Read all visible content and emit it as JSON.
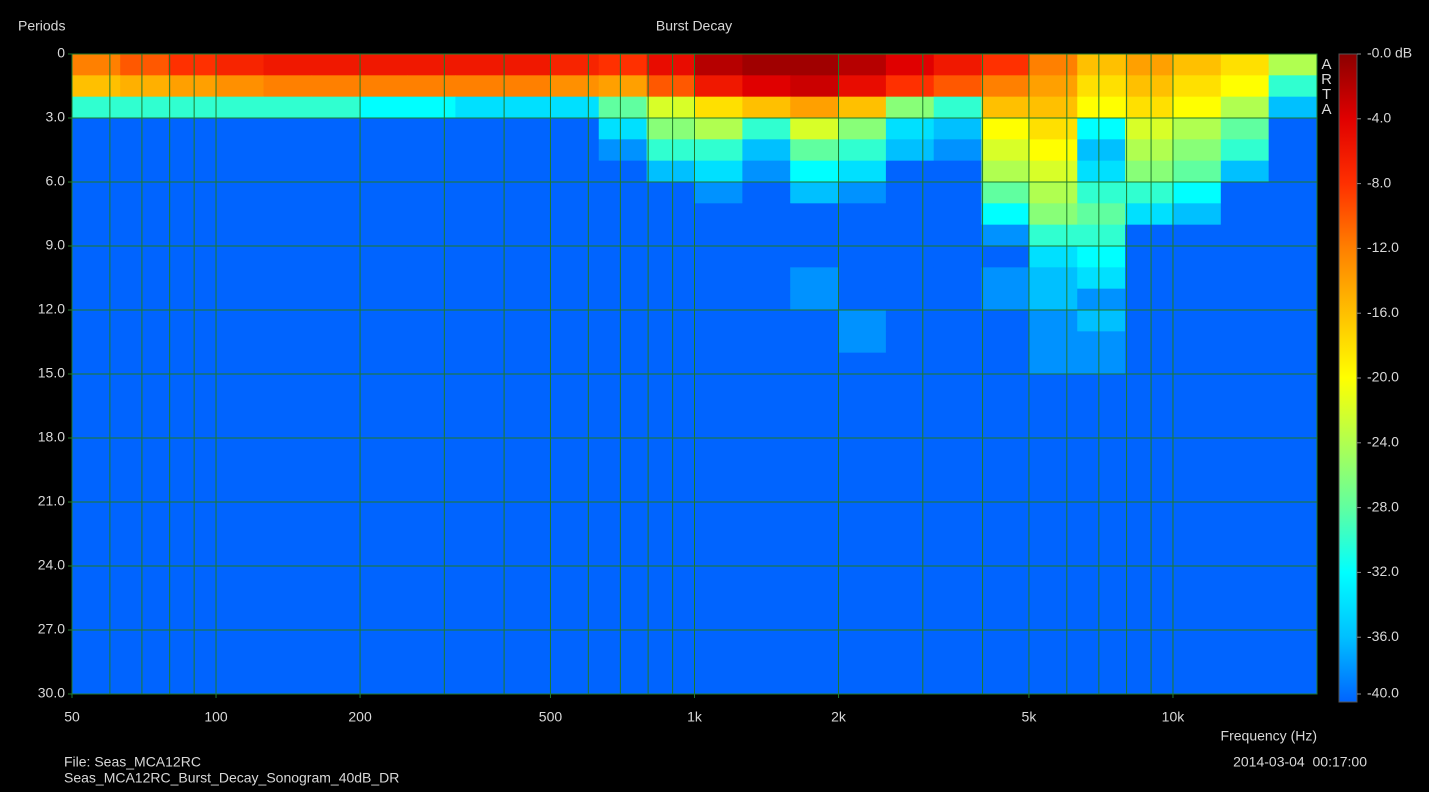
{
  "chart_data": {
    "type": "heatmap",
    "title": "Burst Decay",
    "ylabel": "Periods",
    "xlabel": "Frequency (Hz)",
    "watermark": "ARTA",
    "file_label": "File: Seas_MCA12RC",
    "file_name": "Seas_MCA12RC_Burst_Decay_Sonogram_40dB_DR",
    "timestamp": "2014-03-04  00:17:00",
    "xscale": "log",
    "xlim": [
      50,
      20000
    ],
    "xticks": [
      50,
      100,
      200,
      500,
      {
        "value": 1000,
        "label": "1k"
      },
      {
        "value": 2000,
        "label": "2k"
      },
      {
        "value": 5000,
        "label": "5k"
      },
      {
        "value": 10000,
        "label": "10k"
      }
    ],
    "xminor": [
      60,
      70,
      80,
      90,
      300,
      400,
      600,
      700,
      800,
      900,
      3000,
      4000,
      6000,
      7000,
      8000,
      9000
    ],
    "ylim": [
      0,
      30
    ],
    "yticks": [
      0,
      {
        "value": 3,
        "label": "3.0"
      },
      {
        "value": 6,
        "label": "6.0"
      },
      {
        "value": 9,
        "label": "9.0"
      },
      {
        "value": 12,
        "label": "12.0"
      },
      {
        "value": 15,
        "label": "15.0"
      },
      {
        "value": 18,
        "label": "18.0"
      },
      {
        "value": 21,
        "label": "21.0"
      },
      {
        "value": 24,
        "label": "24.0"
      },
      {
        "value": 27,
        "label": "27.0"
      },
      {
        "value": 30,
        "label": "30.0"
      }
    ],
    "zlim": [
      -40,
      0
    ],
    "zticks": [
      {
        "value": 0,
        "label": "-0.0 dB"
      },
      {
        "value": -4,
        "label": "-4.0"
      },
      {
        "value": -8,
        "label": "-8.0"
      },
      {
        "value": -12,
        "label": "-12.0"
      },
      {
        "value": -16,
        "label": "-16.0"
      },
      {
        "value": -20,
        "label": "-20.0"
      },
      {
        "value": -24,
        "label": "-24.0"
      },
      {
        "value": -28,
        "label": "-28.0"
      },
      {
        "value": -32,
        "label": "-32.0"
      },
      {
        "value": -36,
        "label": "-36.0"
      },
      {
        "value": -40,
        "label": "-40.0"
      }
    ],
    "colormap": [
      "#0064ff",
      "#00c0ff",
      "#00ffff",
      "#60ffa0",
      "#b0ff50",
      "#ffff00",
      "#ffc000",
      "#ff8000",
      "#ff3000",
      "#e00000",
      "#8b0000"
    ],
    "plot_background": "#0064ff",
    "grid_color": "#1f7a2a",
    "x": [
      56,
      71,
      89,
      112,
      141,
      178,
      224,
      282,
      355,
      447,
      562,
      708,
      891,
      1122,
      1413,
      1778,
      2239,
      2818,
      3548,
      4467,
      5623,
      7079,
      8913,
      11220,
      14125,
      17783
    ],
    "y": [
      0.5,
      1.5,
      2.5,
      3.5,
      4.5,
      5.5,
      6.5,
      7.5,
      8.5,
      9.5,
      10.5,
      11.5,
      12.5,
      13.5,
      14.5
    ],
    "z": [
      [
        -12,
        -10,
        -8,
        -7,
        -6,
        -6,
        -6,
        -6,
        -6,
        -6,
        -7,
        -8,
        -5,
        -2,
        -1,
        -1,
        -2,
        -4,
        -6,
        -8,
        -12,
        -16,
        -14,
        -16,
        -18,
        -24
      ],
      [
        -16,
        -15,
        -14,
        -13,
        -12,
        -12,
        -12,
        -12,
        -12,
        -12,
        -13,
        -14,
        -10,
        -6,
        -4,
        -3,
        -5,
        -8,
        -10,
        -12,
        -14,
        -18,
        -16,
        -18,
        -20,
        -30
      ],
      [
        -30,
        -30,
        -30,
        -30,
        -30,
        -30,
        -32,
        -32,
        -34,
        -34,
        -34,
        -28,
        -22,
        -18,
        -16,
        -14,
        -16,
        -26,
        -30,
        -16,
        -16,
        -20,
        -18,
        -20,
        -24,
        -36
      ],
      [
        -40,
        -40,
        -40,
        -40,
        -40,
        -40,
        -40,
        -40,
        -40,
        -40,
        -40,
        -34,
        -26,
        -24,
        -30,
        -22,
        -26,
        -34,
        -36,
        -20,
        -18,
        -32,
        -22,
        -24,
        -28,
        -40
      ],
      [
        -40,
        -40,
        -40,
        -40,
        -40,
        -40,
        -40,
        -40,
        -40,
        -40,
        -40,
        -38,
        -30,
        -30,
        -36,
        -28,
        -30,
        -36,
        -38,
        -22,
        -20,
        -36,
        -24,
        -26,
        -30,
        -40
      ],
      [
        -40,
        -40,
        -40,
        -40,
        -40,
        -40,
        -40,
        -40,
        -40,
        -40,
        -40,
        -40,
        -36,
        -34,
        -38,
        -32,
        -34,
        -40,
        -40,
        -24,
        -22,
        -34,
        -26,
        -28,
        -36,
        -40
      ],
      [
        -40,
        -40,
        -40,
        -40,
        -40,
        -40,
        -40,
        -40,
        -40,
        -40,
        -40,
        -40,
        -40,
        -38,
        -40,
        -36,
        -38,
        -40,
        -40,
        -28,
        -24,
        -30,
        -30,
        -32,
        -40,
        -40
      ],
      [
        -40,
        -40,
        -40,
        -40,
        -40,
        -40,
        -40,
        -40,
        -40,
        -40,
        -40,
        -40,
        -40,
        -40,
        -40,
        -40,
        -40,
        -40,
        -40,
        -32,
        -26,
        -28,
        -34,
        -36,
        -40,
        -40
      ],
      [
        -40,
        -40,
        -40,
        -40,
        -40,
        -40,
        -40,
        -40,
        -40,
        -40,
        -40,
        -40,
        -40,
        -40,
        -40,
        -40,
        -40,
        -40,
        -40,
        -38,
        -30,
        -30,
        -40,
        -40,
        -40,
        -40
      ],
      [
        -40,
        -40,
        -40,
        -40,
        -40,
        -40,
        -40,
        -40,
        -40,
        -40,
        -40,
        -40,
        -40,
        -40,
        -40,
        -40,
        -40,
        -40,
        -40,
        -40,
        -34,
        -32,
        -40,
        -40,
        -40,
        -40
      ],
      [
        -40,
        -40,
        -40,
        -40,
        -40,
        -40,
        -40,
        -40,
        -40,
        -40,
        -40,
        -40,
        -40,
        -40,
        -40,
        -38,
        -40,
        -40,
        -40,
        -38,
        -36,
        -34,
        -40,
        -40,
        -40,
        -40
      ],
      [
        -40,
        -40,
        -40,
        -40,
        -40,
        -40,
        -40,
        -40,
        -40,
        -40,
        -40,
        -40,
        -40,
        -40,
        -40,
        -38,
        -40,
        -40,
        -40,
        -38,
        -36,
        -38,
        -40,
        -40,
        -40,
        -40
      ],
      [
        -40,
        -40,
        -40,
        -40,
        -40,
        -40,
        -40,
        -40,
        -40,
        -40,
        -40,
        -40,
        -40,
        -40,
        -40,
        -40,
        -38,
        -40,
        -40,
        -40,
        -38,
        -36,
        -40,
        -40,
        -40,
        -40
      ],
      [
        -40,
        -40,
        -40,
        -40,
        -40,
        -40,
        -40,
        -40,
        -40,
        -40,
        -40,
        -40,
        -40,
        -40,
        -40,
        -40,
        -38,
        -40,
        -40,
        -40,
        -38,
        -38,
        -40,
        -40,
        -40,
        -40
      ],
      [
        -40,
        -40,
        -40,
        -40,
        -40,
        -40,
        -40,
        -40,
        -40,
        -40,
        -40,
        -40,
        -40,
        -40,
        -40,
        -40,
        -40,
        -40,
        -40,
        -40,
        -38,
        -38,
        -40,
        -40,
        -40,
        -40
      ]
    ]
  }
}
